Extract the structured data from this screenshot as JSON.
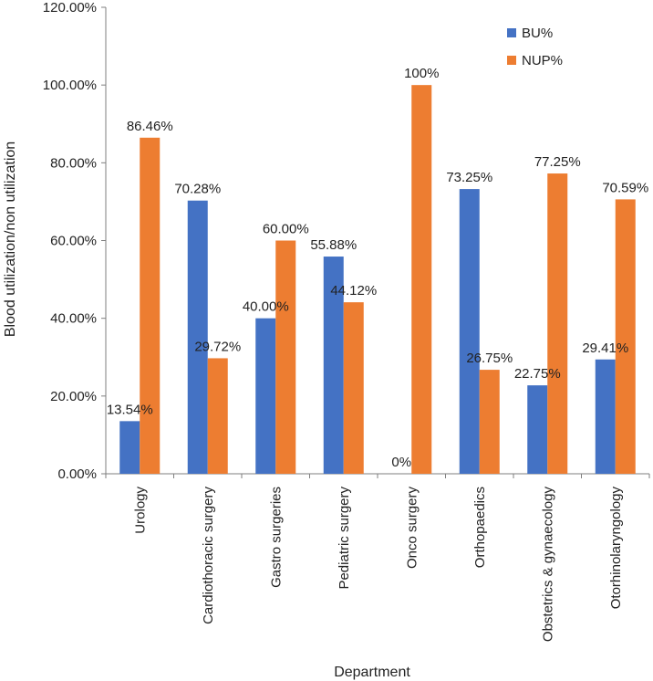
{
  "chart_data": {
    "type": "bar",
    "title": "",
    "xlabel": "Department",
    "ylabel": "Blood utilization/non utilization",
    "ylim": [
      0,
      120
    ],
    "yticks": [
      "0.00%",
      "20.00%",
      "40.00%",
      "60.00%",
      "80.00%",
      "100.00%",
      "120.00%"
    ],
    "ytick_values": [
      0,
      20,
      40,
      60,
      80,
      100,
      120
    ],
    "categories": [
      "Urology",
      "Cardiothoracic surgery",
      "Gastro surgeries",
      "Pediatric surgery",
      "Onco surgery",
      "Orthopaedics",
      "Obstetrics & gynaecology",
      "Otorhinolaryngology"
    ],
    "series": [
      {
        "name": "BU%",
        "color": "#4472C4",
        "values": [
          13.54,
          70.28,
          40.0,
          55.88,
          0,
          73.25,
          22.75,
          29.41
        ],
        "labels": [
          "13.54%",
          "70.28%",
          "40.00%",
          "55.88%",
          "0%",
          "73.25%",
          "22.75%",
          "29.41%"
        ]
      },
      {
        "name": "NUP%",
        "color": "#ED7D31",
        "values": [
          86.46,
          29.72,
          60.0,
          44.12,
          100,
          26.75,
          77.25,
          70.59
        ],
        "labels": [
          "86.46%",
          "29.72%",
          "60.00%",
          "44.12%",
          "100%",
          "26.75%",
          "77.25%",
          "70.59%"
        ]
      }
    ],
    "legend": "top-right",
    "grid": false
  }
}
